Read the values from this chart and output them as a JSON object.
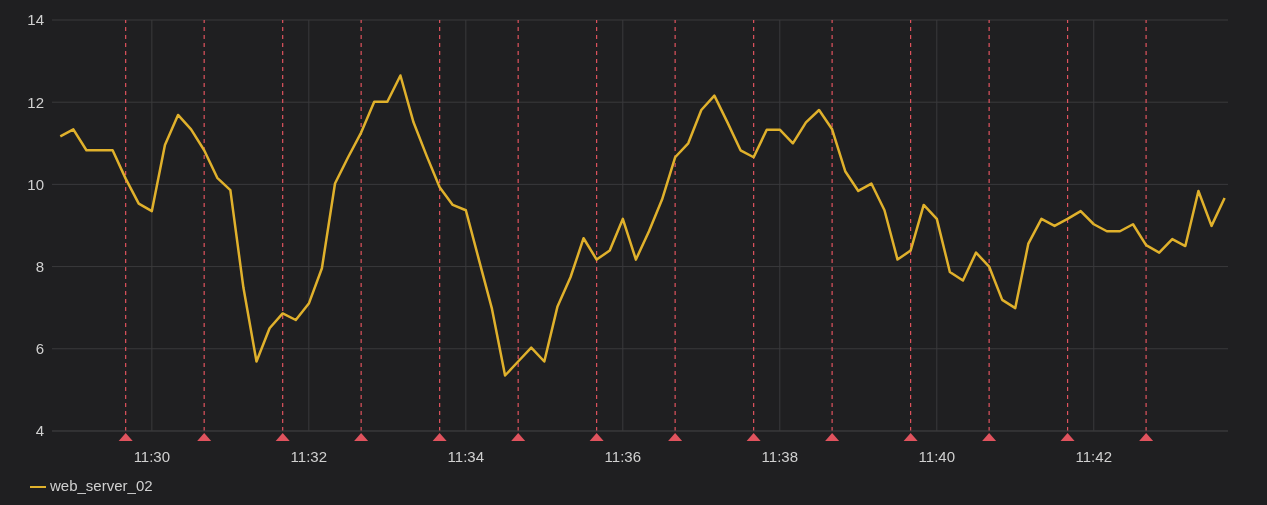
{
  "chart_data": {
    "type": "line",
    "x": [
      11.48056,
      11.48333,
      11.48611,
      11.48889,
      11.49167,
      11.49444,
      11.49722,
      11.5,
      11.50278,
      11.50556,
      11.50833,
      11.51111,
      11.51389,
      11.51667,
      11.51944,
      11.52222,
      11.525,
      11.52778,
      11.53056,
      11.53333,
      11.53611,
      11.53889,
      11.54167,
      11.54444,
      11.54722,
      11.55,
      11.55278,
      11.55556,
      11.55833,
      11.56111,
      11.56389,
      11.56667,
      11.56944,
      11.57222,
      11.575,
      11.57778,
      11.58056,
      11.58333,
      11.58611,
      11.58889,
      11.59167,
      11.59444,
      11.59722,
      11.6,
      11.60278,
      11.60556,
      11.60833,
      11.61111,
      11.61389,
      11.61667,
      11.61944,
      11.62222,
      11.625,
      11.62778,
      11.63056,
      11.63333,
      11.63611,
      11.63889,
      11.64167,
      11.64444,
      11.64722,
      11.65,
      11.65278,
      11.65556,
      11.65833,
      11.66111,
      11.66389,
      11.66667,
      11.66944,
      11.67222,
      11.675,
      11.67778,
      11.68056,
      11.68333,
      11.68611,
      11.68889,
      11.69167,
      11.69444,
      11.69722,
      11.7,
      11.70278,
      11.70556,
      11.70833,
      11.71111,
      11.71389,
      11.71667,
      11.71944,
      11.72222,
      11.725,
      11.72778
    ],
    "series": [
      {
        "name": "web_server_02",
        "color": "#e0b12c",
        "values": [
          11.17,
          11.34,
          10.83,
          10.83,
          10.83,
          10.14,
          9.53,
          9.35,
          10.96,
          11.69,
          11.34,
          10.83,
          10.16,
          9.86,
          7.49,
          5.69,
          6.5,
          6.86,
          6.7,
          7.1,
          7.96,
          10.02,
          10.66,
          11.26,
          12.01,
          12.01,
          12.65,
          11.51,
          10.7,
          9.93,
          9.5,
          9.37,
          8.17,
          6.97,
          5.35,
          5.69,
          6.03,
          5.69,
          7.02,
          7.74,
          8.69,
          8.17,
          8.39,
          9.16,
          8.17,
          8.86,
          9.63,
          10.66,
          11.0,
          11.81,
          12.16,
          11.51,
          10.83,
          10.66,
          11.33,
          11.33,
          11.0,
          11.51,
          11.81,
          11.34,
          10.32,
          9.84,
          10.02,
          9.37,
          8.17,
          8.39,
          9.5,
          9.16,
          7.87,
          7.66,
          8.34,
          8.0,
          7.19,
          6.99,
          8.56,
          9.16,
          8.99,
          9.16,
          9.35,
          9.03,
          8.86,
          8.86,
          9.03,
          8.52,
          8.34,
          8.67,
          8.5,
          9.84,
          8.99,
          9.67
        ]
      }
    ],
    "xlim": [
      11.4788,
      11.7285
    ],
    "xticks": [
      {
        "value": 11.5,
        "label": "11:30"
      },
      {
        "value": 11.53333,
        "label": "11:32"
      },
      {
        "value": 11.56667,
        "label": "11:34"
      },
      {
        "value": 11.6,
        "label": "11:36"
      },
      {
        "value": 11.63333,
        "label": "11:38"
      },
      {
        "value": 11.66667,
        "label": "11:40"
      },
      {
        "value": 11.7,
        "label": "11:42"
      }
    ],
    "ylim": [
      4,
      14
    ],
    "yticks": [
      4,
      6,
      8,
      10,
      12,
      14
    ],
    "grid": true,
    "legend": "bottom left",
    "marker": "none",
    "line_style": "solid",
    "ref_lines": [
      {
        "axis": "x",
        "value": 11.49444,
        "color": "#e0535e",
        "line_style": "dashed"
      },
      {
        "axis": "x",
        "value": 11.51111,
        "color": "#e0535e",
        "line_style": "dashed"
      },
      {
        "axis": "x",
        "value": 11.52778,
        "color": "#e0535e",
        "line_style": "dashed"
      },
      {
        "axis": "x",
        "value": 11.54444,
        "color": "#e0535e",
        "line_style": "dashed"
      },
      {
        "axis": "x",
        "value": 11.56111,
        "color": "#e0535e",
        "line_style": "dashed"
      },
      {
        "axis": "x",
        "value": 11.57778,
        "color": "#e0535e",
        "line_style": "dashed"
      },
      {
        "axis": "x",
        "value": 11.59444,
        "color": "#e0535e",
        "line_style": "dashed"
      },
      {
        "axis": "x",
        "value": 11.61111,
        "color": "#e0535e",
        "line_style": "dashed"
      },
      {
        "axis": "x",
        "value": 11.62778,
        "color": "#e0535e",
        "line_style": "dashed"
      },
      {
        "axis": "x",
        "value": 11.64444,
        "color": "#e0535e",
        "line_style": "dashed"
      },
      {
        "axis": "x",
        "value": 11.66111,
        "color": "#e0535e",
        "line_style": "dashed"
      },
      {
        "axis": "x",
        "value": 11.67778,
        "color": "#e0535e",
        "line_style": "dashed"
      },
      {
        "axis": "x",
        "value": 11.69444,
        "color": "#e0535e",
        "line_style": "dashed"
      },
      {
        "axis": "x",
        "value": 11.71111,
        "color": "#e0535e",
        "line_style": "dashed"
      }
    ]
  }
}
